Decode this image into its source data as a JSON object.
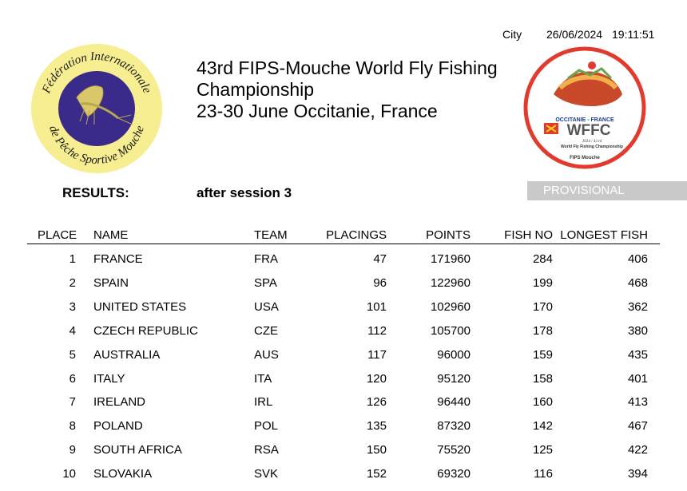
{
  "header": {
    "city": "City",
    "date": "26/06/2024",
    "time": "19:11:51",
    "title_line1": "43rd FIPS-Mouche World Fly Fishing",
    "title_line2": "Championship",
    "title_line3": "23-30 June Occitanie, France"
  },
  "logos": {
    "left_text_top": "Fédération Internationale",
    "left_text_bottom": "de Pêche Sportive Mouche",
    "right_region": "OCCITANIE - FRANCE",
    "right_acronym": "WFFC",
    "right_edition": "2024 / 43 rd",
    "right_event": "World Fly Fishing Championship",
    "right_org": "FIPS Mouche"
  },
  "results_label": "RESULTS:",
  "session_label": "after session 3",
  "provisional": "PROVISIONAL",
  "columns": {
    "place": "PLACE",
    "name": "NAME",
    "team": "TEAM",
    "placings": "PLACINGS",
    "points": "POINTS",
    "fish_no": "FISH NO",
    "longest": "LONGEST FISH"
  },
  "rows": [
    {
      "place": "1",
      "name": "FRANCE",
      "team": "FRA",
      "placings": "47",
      "points": "171960",
      "fish": "284",
      "longest": "406"
    },
    {
      "place": "2",
      "name": "SPAIN",
      "team": "SPA",
      "placings": "96",
      "points": "122960",
      "fish": "199",
      "longest": "468"
    },
    {
      "place": "3",
      "name": "UNITED STATES",
      "team": "USA",
      "placings": "101",
      "points": "102960",
      "fish": "170",
      "longest": "362"
    },
    {
      "place": "4",
      "name": "CZECH REPUBLIC",
      "team": "CZE",
      "placings": "112",
      "points": "105700",
      "fish": "178",
      "longest": "380"
    },
    {
      "place": "5",
      "name": "AUSTRALIA",
      "team": "AUS",
      "placings": "117",
      "points": "96000",
      "fish": "159",
      "longest": "435"
    },
    {
      "place": "6",
      "name": "ITALY",
      "team": "ITA",
      "placings": "120",
      "points": "95120",
      "fish": "158",
      "longest": "401"
    },
    {
      "place": "7",
      "name": "IRELAND",
      "team": "IRL",
      "placings": "126",
      "points": "96440",
      "fish": "160",
      "longest": "413"
    },
    {
      "place": "8",
      "name": "POLAND",
      "team": "POL",
      "placings": "135",
      "points": "87320",
      "fish": "142",
      "longest": "467"
    },
    {
      "place": "9",
      "name": "SOUTH AFRICA",
      "team": "RSA",
      "placings": "150",
      "points": "75520",
      "fish": "125",
      "longest": "422"
    },
    {
      "place": "10",
      "name": "SLOVAKIA",
      "team": "SVK",
      "placings": "152",
      "points": "69320",
      "fish": "116",
      "longest": "394"
    }
  ]
}
